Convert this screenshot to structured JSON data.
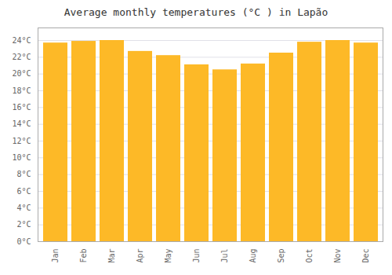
{
  "chart_data": {
    "type": "bar",
    "title": "Average monthly temperatures (°C ) in Lapão",
    "categories": [
      "Jan",
      "Feb",
      "Mar",
      "Apr",
      "May",
      "Jun",
      "Jul",
      "Aug",
      "Sep",
      "Oct",
      "Nov",
      "Dec"
    ],
    "values": [
      23.7,
      23.9,
      24.0,
      22.7,
      22.2,
      21.1,
      20.5,
      21.2,
      22.5,
      23.8,
      24.0,
      23.7
    ],
    "color": "#FDB927",
    "ylim": [
      0,
      25.5
    ],
    "yticks": [
      {
        "value": 0,
        "label": "0°C"
      },
      {
        "value": 2,
        "label": "2°C"
      },
      {
        "value": 4,
        "label": "4°C"
      },
      {
        "value": 6,
        "label": "6°C"
      },
      {
        "value": 8,
        "label": "8°C"
      },
      {
        "value": 10,
        "label": "10°C"
      },
      {
        "value": 12,
        "label": "12°C"
      },
      {
        "value": 14,
        "label": "14°C"
      },
      {
        "value": 16,
        "label": "16°C"
      },
      {
        "value": 18,
        "label": "18°C"
      },
      {
        "value": 20,
        "label": "20°C"
      },
      {
        "value": 22,
        "label": "22°C"
      },
      {
        "value": 24,
        "label": "24°C"
      }
    ],
    "grid": true
  }
}
